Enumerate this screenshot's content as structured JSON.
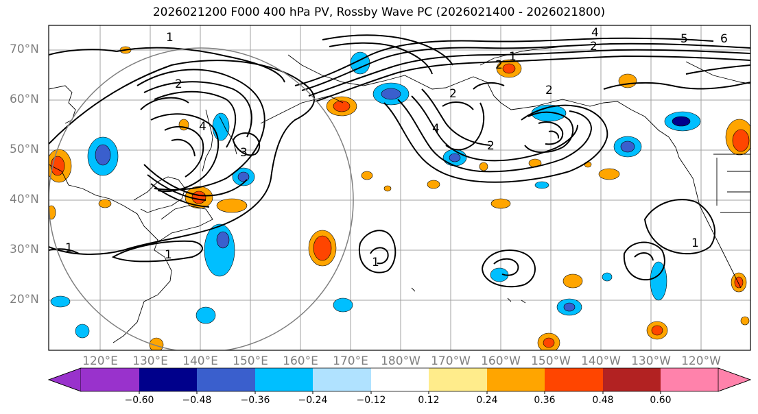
{
  "title": "2026021200 F000 400 hPa PV, Rossby Wave PC (2026021400 - 2026021800)",
  "lat_labels": [
    "70°N",
    "60°N",
    "50°N",
    "40°N",
    "30°N",
    "20°N"
  ],
  "lon_labels": [
    "120°E",
    "130°E",
    "140°E",
    "150°E",
    "160°E",
    "170°E",
    "180°W",
    "170°W",
    "160°W",
    "150°W",
    "140°W",
    "130°W",
    "120°W"
  ],
  "colorbar": {
    "ticks": [
      "−0.60",
      "−0.48",
      "−0.36",
      "−0.24",
      "−0.12",
      "0.12",
      "0.24",
      "0.36",
      "0.48",
      "0.60"
    ],
    "colors": [
      "#9932cc",
      "#00008b",
      "#3a5fcd",
      "#00bfff",
      "#b0e2ff",
      "#ffffff",
      "#ffec8b",
      "#ffa500",
      "#ff4500",
      "#b22222",
      "#ff82ab"
    ]
  },
  "contour_labels": [
    "1",
    "1",
    "1",
    "1",
    "1",
    "1",
    "2",
    "2",
    "2",
    "2",
    "2",
    "2",
    "3",
    "4",
    "5",
    "6",
    "4",
    "4"
  ],
  "shading_colors": {
    "negative_light": "#b0e2ff",
    "negative_mid": "#00bfff",
    "negative_strong": "#3a5fcd",
    "negative_max": "#00008b",
    "positive_light": "#ffec8b",
    "positive_mid": "#ffa500",
    "positive_strong": "#ff4500"
  }
}
